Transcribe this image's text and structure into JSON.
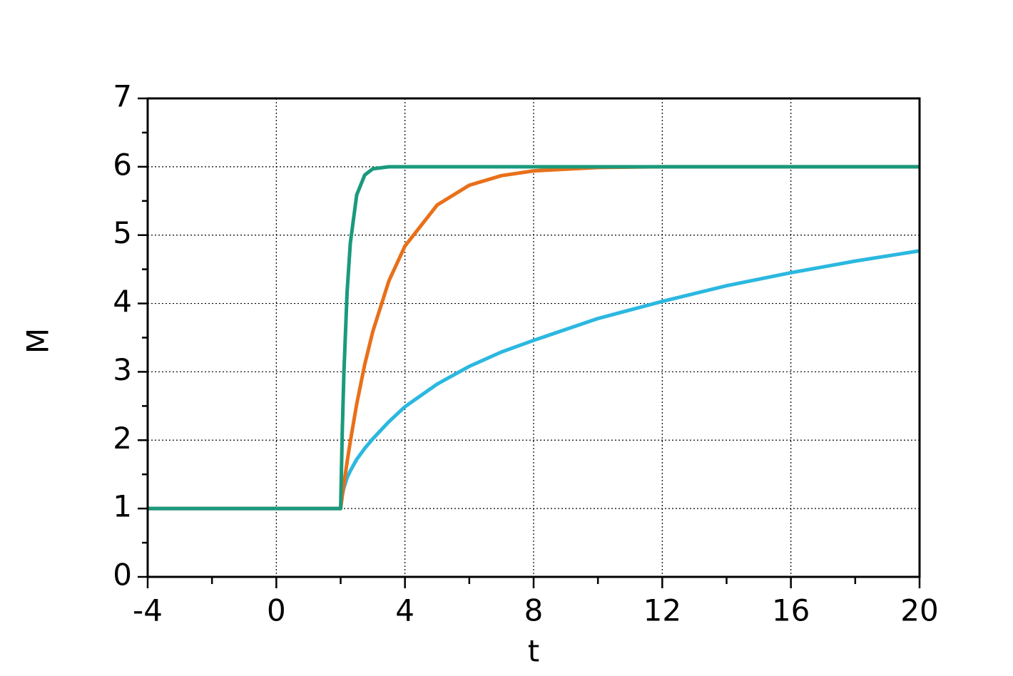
{
  "chart_data": {
    "type": "line",
    "x_label": "t",
    "y_label": "M",
    "x": [
      -4,
      2,
      2.05,
      2.1,
      2.2,
      2.3,
      2.5,
      2.75,
      3,
      3.5,
      4,
      5,
      6,
      7,
      8,
      10,
      12,
      14,
      16,
      18,
      20
    ],
    "series": [
      {
        "color": "#1a9a7c",
        "values": [
          1,
          1,
          2.11,
          2.97,
          4.16,
          4.88,
          5.59,
          5.88,
          5.97,
          6,
          6,
          6,
          6,
          6,
          6,
          6,
          6,
          6,
          6,
          6,
          6
        ]
      },
      {
        "color": "#e8701a",
        "values": [
          1,
          1,
          1.18,
          1.35,
          1.68,
          1.98,
          2.53,
          3.11,
          3.59,
          4.33,
          4.84,
          5.44,
          5.73,
          5.87,
          5.94,
          5.99,
          6,
          6,
          6,
          6,
          6
        ]
      },
      {
        "color": "#2bb8e0",
        "values": [
          1,
          1,
          1.2,
          1.3,
          1.45,
          1.55,
          1.72,
          1.88,
          2.02,
          2.27,
          2.49,
          2.82,
          3.08,
          3.29,
          3.46,
          3.78,
          4.03,
          4.26,
          4.45,
          4.62,
          4.77
        ]
      }
    ],
    "xlim": [
      -4,
      20
    ],
    "xticks": [
      -4,
      0,
      4,
      8,
      12,
      16,
      20
    ],
    "ylim": [
      0,
      7
    ],
    "yticks": [
      0,
      1,
      2,
      3,
      4,
      5,
      6,
      7
    ],
    "grid": true
  }
}
